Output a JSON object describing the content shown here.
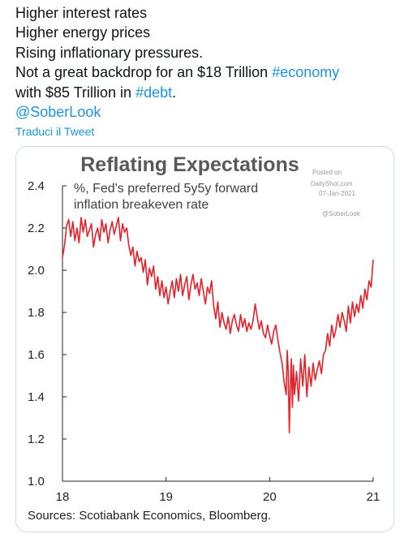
{
  "tweet": {
    "line1": "Higher interest rates",
    "line2": "Higher energy prices",
    "line3": "Rising inflationary pressures.",
    "line4_pre": "Not a great backdrop for an $18 Trillion ",
    "line4_tag": "#economy",
    "line5_pre": "with $85 Trillion in ",
    "line5_tag": "#debt",
    "line5_post": ".",
    "mention": "@SoberLook",
    "translate": "Traduci il Tweet"
  },
  "watermark": {
    "posted_on": "Posted on",
    "site": "DailyShot.com",
    "date": "07-Jan-2021",
    "handle": "@SoberLook"
  },
  "colors": {
    "line": "#e8202a",
    "link": "#1b95e0",
    "title": "#595959"
  },
  "chart_data": {
    "type": "line",
    "title": "Reflating Expectations",
    "subtitle_line1": "%, Fed's preferred 5y5y forward",
    "subtitle_line2": "inflation breakeven rate",
    "source": "Sources: Scotiabank Economics, Bloomberg.",
    "ylim": [
      1.0,
      2.4
    ],
    "xlim": [
      18,
      21
    ],
    "y_ticks": [
      "1.0",
      "1.2",
      "1.4",
      "1.6",
      "1.8",
      "2.0",
      "2.2",
      "2.4"
    ],
    "x_ticks": [
      "18",
      "19",
      "20",
      "21"
    ],
    "series": [
      {
        "x": [
          18.0,
          18.02,
          18.04,
          18.06,
          18.08,
          18.1,
          18.12,
          18.14,
          18.16,
          18.18,
          18.2,
          18.22,
          18.24,
          18.26,
          18.28,
          18.3,
          18.32,
          18.34,
          18.36,
          18.38,
          18.4,
          18.42,
          18.44,
          18.46,
          18.48,
          18.5,
          18.52,
          18.54,
          18.56,
          18.58,
          18.6,
          18.62,
          18.64,
          18.66,
          18.68,
          18.7,
          18.72,
          18.74,
          18.76,
          18.78,
          18.8,
          18.82,
          18.84,
          18.86,
          18.88,
          18.9,
          18.92,
          18.94,
          18.96,
          18.98,
          19.0,
          19.02,
          19.04,
          19.06,
          19.08,
          19.1,
          19.12,
          19.14,
          19.16,
          19.18,
          19.2,
          19.22,
          19.24,
          19.26,
          19.28,
          19.3,
          19.32,
          19.34,
          19.36,
          19.38,
          19.4,
          19.42,
          19.44,
          19.46,
          19.48,
          19.5,
          19.52,
          19.54,
          19.56,
          19.58,
          19.6,
          19.62,
          19.64,
          19.66,
          19.68,
          19.7,
          19.72,
          19.74,
          19.76,
          19.78,
          19.8,
          19.82,
          19.84,
          19.86,
          19.88,
          19.9,
          19.92,
          19.94,
          19.96,
          19.98,
          20.0,
          20.02,
          20.04,
          20.06,
          20.08,
          20.1,
          20.12,
          20.14,
          20.16,
          20.17,
          20.18,
          20.19,
          20.2,
          20.21,
          20.22,
          20.23,
          20.24,
          20.26,
          20.28,
          20.3,
          20.32,
          20.34,
          20.36,
          20.38,
          20.4,
          20.42,
          20.44,
          20.46,
          20.48,
          20.5,
          20.52,
          20.54,
          20.56,
          20.58,
          20.6,
          20.62,
          20.64,
          20.66,
          20.68,
          20.7,
          20.72,
          20.74,
          20.76,
          20.78,
          20.8,
          20.82,
          20.84,
          20.86,
          20.88,
          20.9,
          20.92,
          20.94,
          20.96,
          20.98,
          21.0
        ],
        "values": [
          2.06,
          2.12,
          2.21,
          2.24,
          2.16,
          2.23,
          2.14,
          2.2,
          2.13,
          2.25,
          2.18,
          2.24,
          2.16,
          2.19,
          2.22,
          2.11,
          2.17,
          2.2,
          2.14,
          2.24,
          2.18,
          2.22,
          2.13,
          2.19,
          2.23,
          2.17,
          2.21,
          2.25,
          2.14,
          2.22,
          2.18,
          2.2,
          2.12,
          2.07,
          2.11,
          2.02,
          2.09,
          2.04,
          2.06,
          1.99,
          2.05,
          1.93,
          2.01,
          1.97,
          2.02,
          1.91,
          1.97,
          1.88,
          1.95,
          1.87,
          1.92,
          1.84,
          1.9,
          1.95,
          1.87,
          1.96,
          1.9,
          1.98,
          1.88,
          1.93,
          1.97,
          1.86,
          1.93,
          1.98,
          1.91,
          1.94,
          1.88,
          1.96,
          1.9,
          1.84,
          1.92,
          1.89,
          1.95,
          1.83,
          1.77,
          1.85,
          1.73,
          1.8,
          1.75,
          1.72,
          1.78,
          1.7,
          1.76,
          1.79,
          1.74,
          1.71,
          1.79,
          1.73,
          1.77,
          1.71,
          1.75,
          1.72,
          1.76,
          1.84,
          1.78,
          1.72,
          1.76,
          1.7,
          1.68,
          1.74,
          1.69,
          1.65,
          1.71,
          1.74,
          1.67,
          1.61,
          1.56,
          1.47,
          1.41,
          1.62,
          1.52,
          1.23,
          1.45,
          1.58,
          1.35,
          1.55,
          1.41,
          1.52,
          1.38,
          1.58,
          1.45,
          1.6,
          1.4,
          1.54,
          1.45,
          1.56,
          1.48,
          1.53,
          1.57,
          1.51,
          1.6,
          1.62,
          1.7,
          1.64,
          1.74,
          1.68,
          1.72,
          1.79,
          1.73,
          1.8,
          1.76,
          1.71,
          1.83,
          1.75,
          1.85,
          1.78,
          1.84,
          1.8,
          1.88,
          1.82,
          1.91,
          1.86,
          1.95,
          1.92,
          2.05
        ]
      }
    ]
  }
}
